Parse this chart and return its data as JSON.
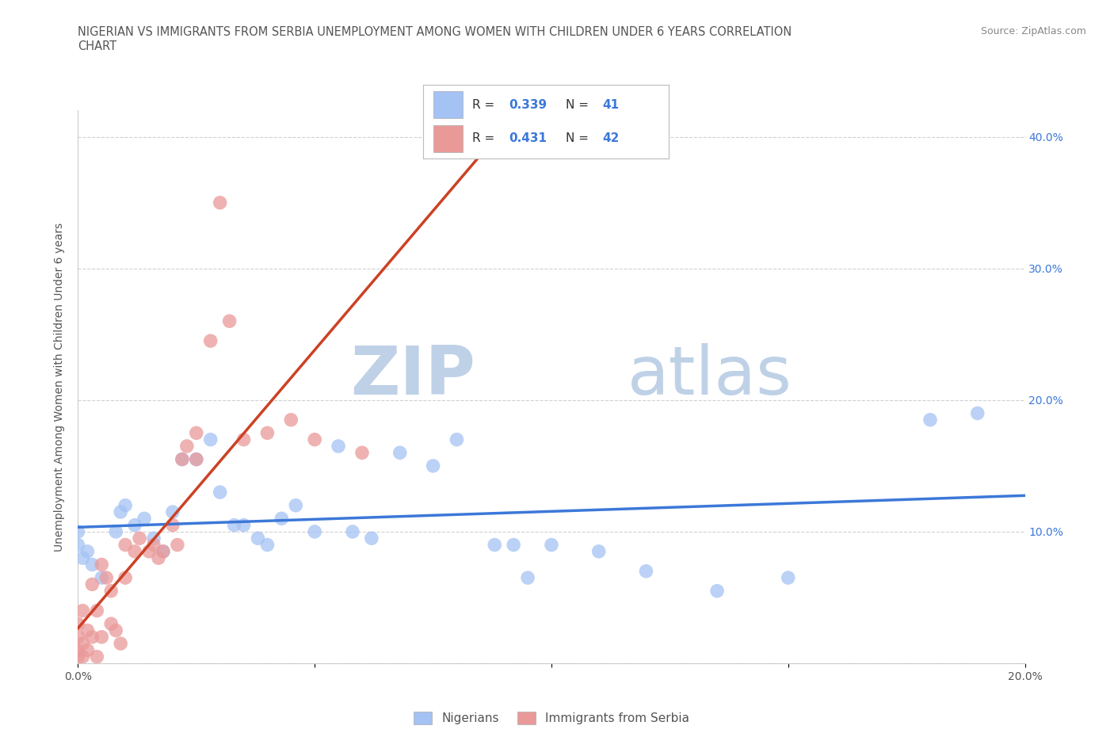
{
  "title_line1": "NIGERIAN VS IMMIGRANTS FROM SERBIA UNEMPLOYMENT AMONG WOMEN WITH CHILDREN UNDER 6 YEARS CORRELATION",
  "title_line2": "CHART",
  "source_text": "Source: ZipAtlas.com",
  "ylabel": "Unemployment Among Women with Children Under 6 years",
  "xlim": [
    0.0,
    0.2
  ],
  "ylim": [
    0.0,
    0.42
  ],
  "r_nigerian": 0.339,
  "n_nigerian": 41,
  "r_serbia": 0.431,
  "n_serbia": 42,
  "blue_color": "#a4c2f4",
  "pink_color": "#ea9999",
  "trend_blue": "#3c78d8",
  "trend_pink": "#cc4125",
  "watermark_color": "#cfe2f3",
  "background_color": "#ffffff",
  "grid_color": "#cccccc",
  "nigerian_x": [
    0.0,
    0.0,
    0.001,
    0.002,
    0.003,
    0.005,
    0.008,
    0.009,
    0.01,
    0.012,
    0.014,
    0.016,
    0.018,
    0.02,
    0.022,
    0.025,
    0.028,
    0.03,
    0.033,
    0.035,
    0.038,
    0.04,
    0.043,
    0.046,
    0.05,
    0.055,
    0.058,
    0.062,
    0.068,
    0.075,
    0.08,
    0.088,
    0.092,
    0.095,
    0.1,
    0.11,
    0.12,
    0.135,
    0.15,
    0.18,
    0.19
  ],
  "nigerian_y": [
    0.09,
    0.1,
    0.08,
    0.085,
    0.075,
    0.065,
    0.1,
    0.115,
    0.12,
    0.105,
    0.11,
    0.095,
    0.085,
    0.115,
    0.155,
    0.155,
    0.17,
    0.13,
    0.105,
    0.105,
    0.095,
    0.09,
    0.11,
    0.12,
    0.1,
    0.165,
    0.1,
    0.095,
    0.16,
    0.15,
    0.17,
    0.09,
    0.09,
    0.065,
    0.09,
    0.085,
    0.07,
    0.055,
    0.065,
    0.185,
    0.19
  ],
  "serbia_x": [
    0.0,
    0.0,
    0.0,
    0.0,
    0.001,
    0.001,
    0.001,
    0.002,
    0.002,
    0.003,
    0.003,
    0.004,
    0.004,
    0.005,
    0.005,
    0.006,
    0.007,
    0.007,
    0.008,
    0.009,
    0.01,
    0.01,
    0.012,
    0.013,
    0.015,
    0.016,
    0.017,
    0.018,
    0.02,
    0.021,
    0.022,
    0.023,
    0.025,
    0.025,
    0.028,
    0.03,
    0.032,
    0.035,
    0.04,
    0.045,
    0.05,
    0.06
  ],
  "serbia_y": [
    0.005,
    0.01,
    0.02,
    0.03,
    0.005,
    0.015,
    0.04,
    0.01,
    0.025,
    0.02,
    0.06,
    0.005,
    0.04,
    0.02,
    0.075,
    0.065,
    0.03,
    0.055,
    0.025,
    0.015,
    0.065,
    0.09,
    0.085,
    0.095,
    0.085,
    0.09,
    0.08,
    0.085,
    0.105,
    0.09,
    0.155,
    0.165,
    0.155,
    0.175,
    0.245,
    0.35,
    0.26,
    0.17,
    0.175,
    0.185,
    0.17,
    0.16
  ]
}
